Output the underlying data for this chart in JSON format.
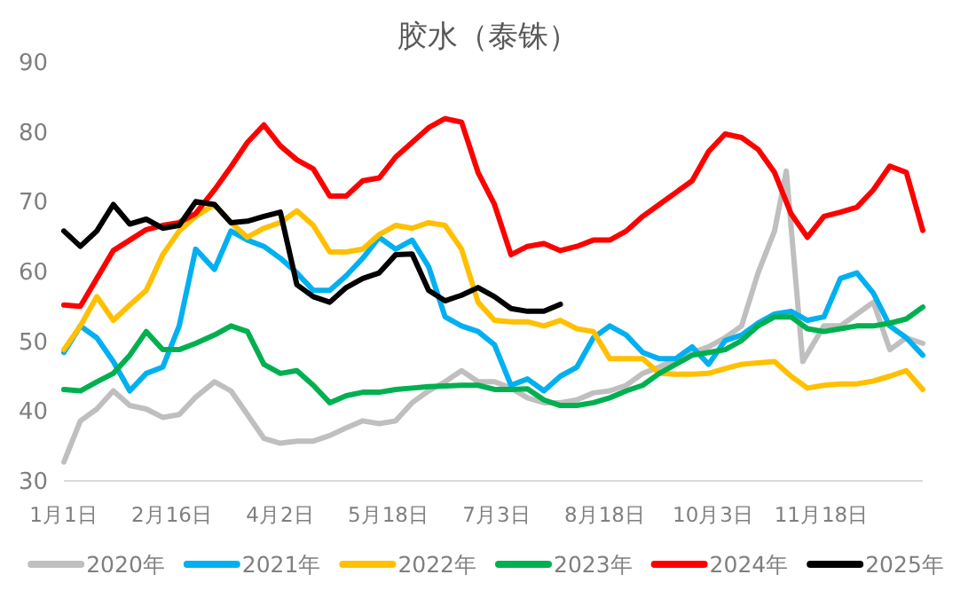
{
  "chart_data": {
    "type": "line",
    "title": "胶水（泰铢）",
    "x": [
      "--01-01",
      "--01-08",
      "--01-15",
      "--01-22",
      "--01-29",
      "--02-05",
      "--02-12",
      "--02-19",
      "--02-26",
      "--03-05",
      "--03-12",
      "--03-19",
      "--03-26",
      "--04-02",
      "--04-09",
      "--04-16",
      "--04-23",
      "--04-30",
      "--05-07",
      "--05-14",
      "--05-21",
      "--05-28",
      "--06-04",
      "--06-11",
      "--06-18",
      "--06-25",
      "--07-02",
      "--07-09",
      "--07-16",
      "--07-23",
      "--07-30",
      "--08-06",
      "--08-13",
      "--08-20",
      "--08-27",
      "--09-03",
      "--09-10",
      "--09-17",
      "--09-24",
      "--10-01",
      "--10-08",
      "--10-15",
      "--10-22",
      "--10-29",
      "--11-05",
      "--11-12",
      "--11-19",
      "--11-26",
      "--12-03",
      "--12-10",
      "--12-17",
      "--12-24",
      "--12-31"
    ],
    "xlim": [
      "--01-01",
      "--12-31"
    ],
    "xticks": [
      {
        "value": "--01-01",
        "label": "1月1日"
      },
      {
        "value": "--02-16",
        "label": "2月16日"
      },
      {
        "value": "--04-02",
        "label": "4月2日"
      },
      {
        "value": "--05-18",
        "label": "5月18日"
      },
      {
        "value": "--07-03",
        "label": "7月3日"
      },
      {
        "value": "--08-18",
        "label": "8月18日"
      },
      {
        "value": "--10-03",
        "label": "10月3日"
      },
      {
        "value": "--11-18",
        "label": "11月18日"
      }
    ],
    "ylim": [
      30,
      90
    ],
    "yticks": [
      30,
      40,
      50,
      60,
      70,
      80,
      90
    ],
    "legend": "bottom",
    "series": [
      {
        "name": "2020年",
        "color": "#bfbfbf",
        "x": [
          "--01-01",
          "--01-08",
          "--01-15",
          "--01-22",
          "--01-29",
          "--02-05",
          "--02-12",
          "--02-19",
          "--02-26",
          "--03-05",
          "--03-12",
          "--03-19",
          "--03-26",
          "--04-02",
          "--04-09",
          "--04-16",
          "--04-23",
          "--04-30",
          "--05-07",
          "--05-14",
          "--05-21",
          "--05-28",
          "--06-04",
          "--06-11",
          "--06-18",
          "--06-25",
          "--07-02",
          "--07-09",
          "--07-16",
          "--07-23",
          "--07-30",
          "--08-06",
          "--08-13",
          "--08-20",
          "--08-27",
          "--09-03",
          "--09-10",
          "--09-17",
          "--09-24",
          "--10-01",
          "--10-08",
          "--10-15",
          "--10-22",
          "--10-29",
          "--11-03",
          "--11-10",
          "--11-19",
          "--11-26",
          "--12-03",
          "--12-10",
          "--12-17",
          "--12-24",
          "--12-31"
        ],
        "values": [
          32.7,
          38.6,
          40.3,
          42.9,
          40.8,
          40.3,
          39.1,
          39.5,
          42,
          44.2,
          42.9,
          39.5,
          36.1,
          35.4,
          35.7,
          35.7,
          36.5,
          37.6,
          38.6,
          38.2,
          38.6,
          41.2,
          42.9,
          44.2,
          45.8,
          44.2,
          44.2,
          43.3,
          41.9,
          41.2,
          41.2,
          41.6,
          42.6,
          42.9,
          43.7,
          45.4,
          46.3,
          47.5,
          48.4,
          49.2,
          50.5,
          52.2,
          59.8,
          65.8,
          74.4,
          47.1,
          52.2,
          52.2,
          53.9,
          55.6,
          48.8,
          50.5,
          49.7
        ]
      },
      {
        "name": "2021年",
        "color": "#00b0f0",
        "values": [
          48.4,
          52.2,
          50.5,
          47.1,
          42.9,
          45.4,
          46.3,
          52.2,
          63.2,
          60.3,
          65.8,
          64.5,
          63.6,
          61.9,
          59.8,
          57.3,
          57.3,
          59.4,
          61.9,
          64.9,
          63.2,
          64.5,
          60.7,
          53.5,
          52.2,
          51.4,
          49.5,
          43.7,
          44.6,
          42.9,
          45,
          46.3,
          50.5,
          52.2,
          50.9,
          48.4,
          47.5,
          47.5,
          49.2,
          46.7,
          50.1,
          50.9,
          52.6,
          53.9,
          54.3,
          53,
          53.5,
          59,
          59.8,
          56.9,
          52.2,
          50.5,
          48
        ]
      },
      {
        "name": "2022年",
        "color": "#ffc000",
        "values": [
          48.8,
          52.2,
          56.4,
          53,
          55.2,
          57.3,
          62.4,
          65.8,
          67.9,
          69.6,
          67,
          64.9,
          66.2,
          67,
          68.7,
          66.6,
          62.8,
          62.8,
          63.2,
          65.3,
          66.6,
          66.2,
          67,
          66.6,
          63.2,
          55.6,
          53,
          52.8,
          52.8,
          52.2,
          53,
          51.8,
          51.4,
          47.5,
          47.5,
          47.5,
          45.4,
          45.3,
          45.3,
          45.4,
          46.1,
          46.7,
          46.9,
          47.1,
          45,
          43.3,
          43.7,
          43.9,
          43.9,
          44.3,
          45,
          45.8,
          43.1
        ]
      },
      {
        "name": "2023年",
        "color": "#00b050",
        "values": [
          43.1,
          42.9,
          44.2,
          45.4,
          48,
          51.4,
          48.8,
          48.8,
          49.7,
          50.9,
          52.2,
          51.4,
          46.7,
          45.4,
          45.8,
          43.7,
          41.2,
          42.2,
          42.7,
          42.7,
          43.1,
          43.3,
          43.5,
          43.6,
          43.7,
          43.7,
          43.1,
          43.1,
          43.2,
          41.6,
          40.8,
          40.8,
          41.2,
          41.9,
          42.9,
          43.7,
          45.4,
          46.7,
          48,
          48.4,
          48.8,
          50.1,
          52.2,
          53.5,
          53.5,
          51.8,
          51.4,
          51.8,
          52.2,
          52.2,
          52.6,
          53.2,
          54.9
        ]
      },
      {
        "name": "2024年",
        "color": "#ff0000",
        "values": [
          55.2,
          55,
          59,
          63,
          64.5,
          66,
          66.6,
          67,
          68.3,
          71.7,
          75,
          78.5,
          81,
          78,
          76,
          74.7,
          70.8,
          70.8,
          73,
          73.4,
          76.4,
          78.5,
          80.6,
          81.9,
          81.4,
          74.2,
          69.6,
          62.4,
          63.6,
          64,
          63,
          63.6,
          64.5,
          64.5,
          65.8,
          67.9,
          69.6,
          71.3,
          73,
          77.2,
          79.7,
          79.2,
          77.5,
          74.2,
          68.3,
          64.9,
          67.9,
          68.5,
          69.2,
          71.7,
          75.1,
          74.2,
          65.9
        ]
      },
      {
        "name": "2025年",
        "color": "#000000",
        "values": [
          65.8,
          63.6,
          65.8,
          69.6,
          66.8,
          67.5,
          66.2,
          66.6,
          70,
          69.6,
          67,
          67.2,
          67.9,
          68.5,
          58.1,
          56.4,
          55.6,
          57.7,
          59,
          59.8,
          62.4,
          62.5,
          57.3,
          55.8,
          56.6,
          57.7,
          56.4,
          54.7,
          54.3,
          54.3,
          55.3,
          null,
          null,
          null,
          null,
          null,
          null,
          null,
          null,
          null,
          null,
          null,
          null,
          null,
          null,
          null,
          null,
          null,
          null,
          null,
          null,
          null,
          null
        ]
      }
    ]
  }
}
